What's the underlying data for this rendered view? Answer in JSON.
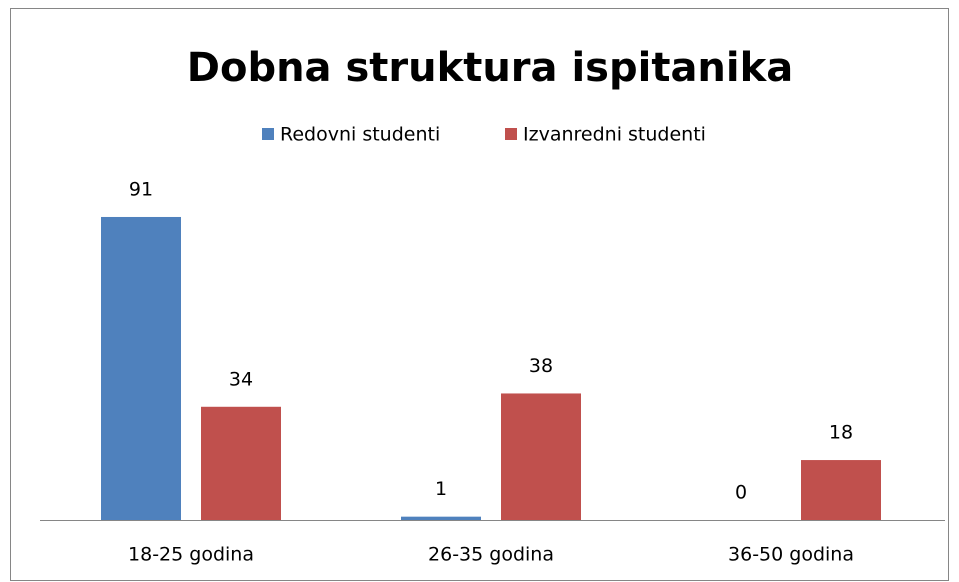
{
  "chart_data": {
    "type": "bar",
    "title": "Dobna struktura ispitanika",
    "categories": [
      "18-25 godina",
      "26-35 godina",
      "36-50 godina"
    ],
    "series": [
      {
        "name": "Redovni studenti",
        "color": "#4f81bd",
        "values": [
          91,
          1,
          0
        ]
      },
      {
        "name": "Izvanredni studenti",
        "color": "#c0504d",
        "values": [
          34,
          38,
          18
        ]
      }
    ],
    "ylim": [
      0,
      100
    ],
    "legend": "top"
  }
}
